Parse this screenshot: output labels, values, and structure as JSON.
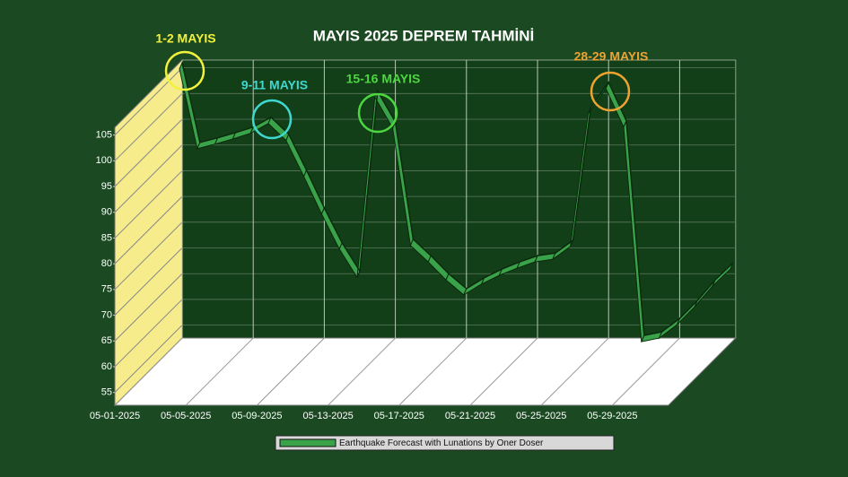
{
  "chart_data": {
    "type": "line",
    "title": "MAYIS 2025 DEPREM TAHMİNİ",
    "x": [
      "05-01-2025",
      "05-02-2025",
      "05-03-2025",
      "05-04-2025",
      "05-05-2025",
      "05-06-2025",
      "05-07-2025",
      "05-08-2025",
      "05-09-2025",
      "05-10-2025",
      "05-11-2025",
      "05-12-2025",
      "05-13-2025",
      "05-14-2025",
      "05-15-2025",
      "05-16-2025",
      "05-17-2025",
      "05-18-2025",
      "05-19-2025",
      "05-20-2025",
      "05-21-2025",
      "05-22-2025",
      "05-23-2025",
      "05-24-2025",
      "05-25-2025",
      "05-26-2025",
      "05-27-2025",
      "05-28-2025",
      "05-29-2025",
      "05-30-2025",
      "05-31-2025",
      "06-01-2025"
    ],
    "xticks": [
      "05-01-2025",
      "05-05-2025",
      "05-09-2025",
      "05-13-2025",
      "05-17-2025",
      "05-21-2025",
      "05-25-2025",
      "05-29-2025"
    ],
    "series": [
      {
        "name": "Earthquake Forecast with Lunations by Oner Doser",
        "color": "#3aa34a",
        "values": [
          106,
          90.5,
          91.4,
          92.4,
          93.5,
          95.4,
          92.1,
          85.1,
          77.8,
          71,
          65.5,
          100.5,
          94.5,
          71.7,
          68.5,
          65,
          62.1,
          64.2,
          65.9,
          67.3,
          68.5,
          69,
          71.5,
          97.3,
          102.2,
          94.7,
          53,
          53.7,
          56.3,
          59.8,
          63.8,
          67.1
        ]
      }
    ],
    "ylim": [
      52.5,
      106.5
    ],
    "yticks": [
      55,
      60,
      65,
      70,
      75,
      80,
      85,
      90,
      95,
      100,
      105
    ],
    "grid": true,
    "legend": "bottom",
    "annotations": [
      {
        "text": "1-2 MAYIS",
        "color": "#f2f23c"
      },
      {
        "text": "9-11 MAYIS",
        "color": "#3ed8d0"
      },
      {
        "text": "15-16 MAYIS",
        "color": "#4cd640"
      },
      {
        "text": "28-29 MAYIS",
        "color": "#eea232"
      }
    ]
  }
}
